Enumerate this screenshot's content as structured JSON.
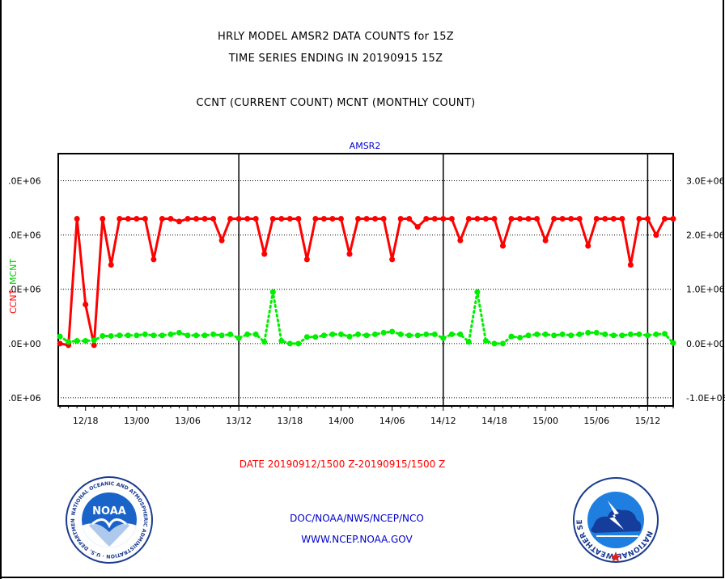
{
  "titles": {
    "line1": "HRLY MODEL AMSR2 DATA COUNTS for 15Z",
    "line2": "TIME SERIES ENDING IN 20190915 15Z",
    "line3": "CCNT (CURRENT COUNT) MCNT (MONTHLY COUNT)"
  },
  "footer": {
    "date_range": "DATE 20190912/1500 Z-20190915/1500 Z",
    "org": "DOC/NOAA/NWS/NCEP/NCO",
    "url": "WWW.NCEP.NOAA.GOV"
  },
  "logos": {
    "noaa_text": "NOAA",
    "noaa_ring": "NATIONAL OCEANIC AND ATMOSPHERIC ADMINISTRATION · U.S. DEPARTMENT OF COMMERCE",
    "nws_ring": "NATIONAL WEATHER SERVICE"
  },
  "colors": {
    "ccnt": "#ff0000",
    "mcnt": "#00ee00",
    "title_blue": "#0000cc",
    "date_red": "#ff0000"
  },
  "chart_data": {
    "type": "line",
    "title": "AMSR2",
    "xlabel": "DATE 20190912/1500 Z-20190915/1500 Z",
    "ylabel_left": [
      "CCNT",
      "MCNT"
    ],
    "x_tick_labels": [
      "12/18",
      "13/00",
      "13/06",
      "13/12",
      "13/18",
      "14/00",
      "14/06",
      "14/12",
      "14/18",
      "15/00",
      "15/06",
      "15/12"
    ],
    "x_tick_hours": [
      3,
      9,
      15,
      21,
      27,
      33,
      39,
      45,
      51,
      57,
      63,
      69
    ],
    "day_boundaries_hours": [
      21,
      45,
      69
    ],
    "x_range_hours": [
      -0.2,
      72
    ],
    "y_left_ticks": [
      ".0E+06",
      ".0E+06",
      ".0E+06",
      ".0E+00",
      ".0E+06"
    ],
    "y_right_ticks": [
      "3.0E+06",
      "2.0E+06",
      "1.0E+06",
      "0.0E+00",
      "-1.0E+06"
    ],
    "y_tick_values": [
      3000000,
      2000000,
      1000000,
      0,
      -1000000
    ],
    "ylim": [
      -1150000,
      3500000
    ],
    "grid": "horizontal dotted",
    "series": [
      {
        "key": "ccnt",
        "hours": [
          0,
          1,
          2,
          3,
          4,
          5,
          6,
          7,
          8,
          9,
          10,
          11,
          12,
          13,
          14,
          15,
          16,
          17,
          18,
          19,
          20,
          21,
          22,
          23,
          24,
          25,
          26,
          27,
          28,
          29,
          30,
          31,
          32,
          33,
          34,
          35,
          36,
          37,
          38,
          39,
          40,
          41,
          42,
          43,
          44,
          45,
          46,
          47,
          48,
          49,
          50,
          51,
          52,
          53,
          54,
          55,
          56,
          57,
          58,
          59,
          60,
          61,
          62,
          63,
          64,
          65,
          66,
          67,
          68,
          69,
          70,
          71,
          72
        ],
        "values": [
          0,
          -30000,
          2300000,
          720000,
          -30000,
          2300000,
          1450000,
          2300000,
          2300000,
          2300000,
          2300000,
          1550000,
          2300000,
          2300000,
          2250000,
          2300000,
          2300000,
          2300000,
          2300000,
          1900000,
          2300000,
          2300000,
          2300000,
          2300000,
          1650000,
          2300000,
          2300000,
          2300000,
          2300000,
          1550000,
          2300000,
          2300000,
          2300000,
          2300000,
          1650000,
          2300000,
          2300000,
          2300000,
          2300000,
          1550000,
          2300000,
          2300000,
          2150000,
          2300000,
          2300000,
          2300000,
          2300000,
          1900000,
          2300000,
          2300000,
          2300000,
          2300000,
          1800000,
          2300000,
          2300000,
          2300000,
          2300000,
          1900000,
          2300000,
          2300000,
          2300000,
          2300000,
          1800000,
          2300000,
          2300000,
          2300000,
          2300000,
          1450000,
          2300000,
          2300000,
          2000000,
          2300000,
          2300000
        ]
      },
      {
        "key": "mcnt",
        "hours": [
          0,
          1,
          2,
          3,
          4,
          5,
          6,
          7,
          8,
          9,
          10,
          11,
          12,
          13,
          14,
          15,
          16,
          17,
          18,
          19,
          20,
          21,
          22,
          23,
          24,
          25,
          26,
          27,
          28,
          29,
          30,
          31,
          32,
          33,
          34,
          35,
          36,
          37,
          38,
          39,
          40,
          41,
          42,
          43,
          44,
          45,
          46,
          47,
          48,
          49,
          50,
          51,
          52,
          53,
          54,
          55,
          56,
          57,
          58,
          59,
          60,
          61,
          62,
          63,
          64,
          65,
          66,
          67,
          68,
          69,
          70,
          71,
          72
        ],
        "values": [
          130000,
          30000,
          50000,
          50000,
          60000,
          140000,
          140000,
          150000,
          150000,
          150000,
          170000,
          150000,
          150000,
          170000,
          200000,
          150000,
          150000,
          150000,
          170000,
          150000,
          170000,
          100000,
          170000,
          170000,
          30000,
          950000,
          50000,
          0,
          0,
          120000,
          120000,
          150000,
          170000,
          170000,
          130000,
          170000,
          150000,
          170000,
          200000,
          220000,
          170000,
          150000,
          150000,
          170000,
          170000,
          100000,
          170000,
          170000,
          30000,
          950000,
          50000,
          0,
          0,
          130000,
          110000,
          150000,
          170000,
          170000,
          150000,
          170000,
          150000,
          170000,
          200000,
          200000,
          170000,
          150000,
          150000,
          170000,
          170000,
          150000,
          170000,
          180000,
          10000
        ]
      }
    ]
  }
}
